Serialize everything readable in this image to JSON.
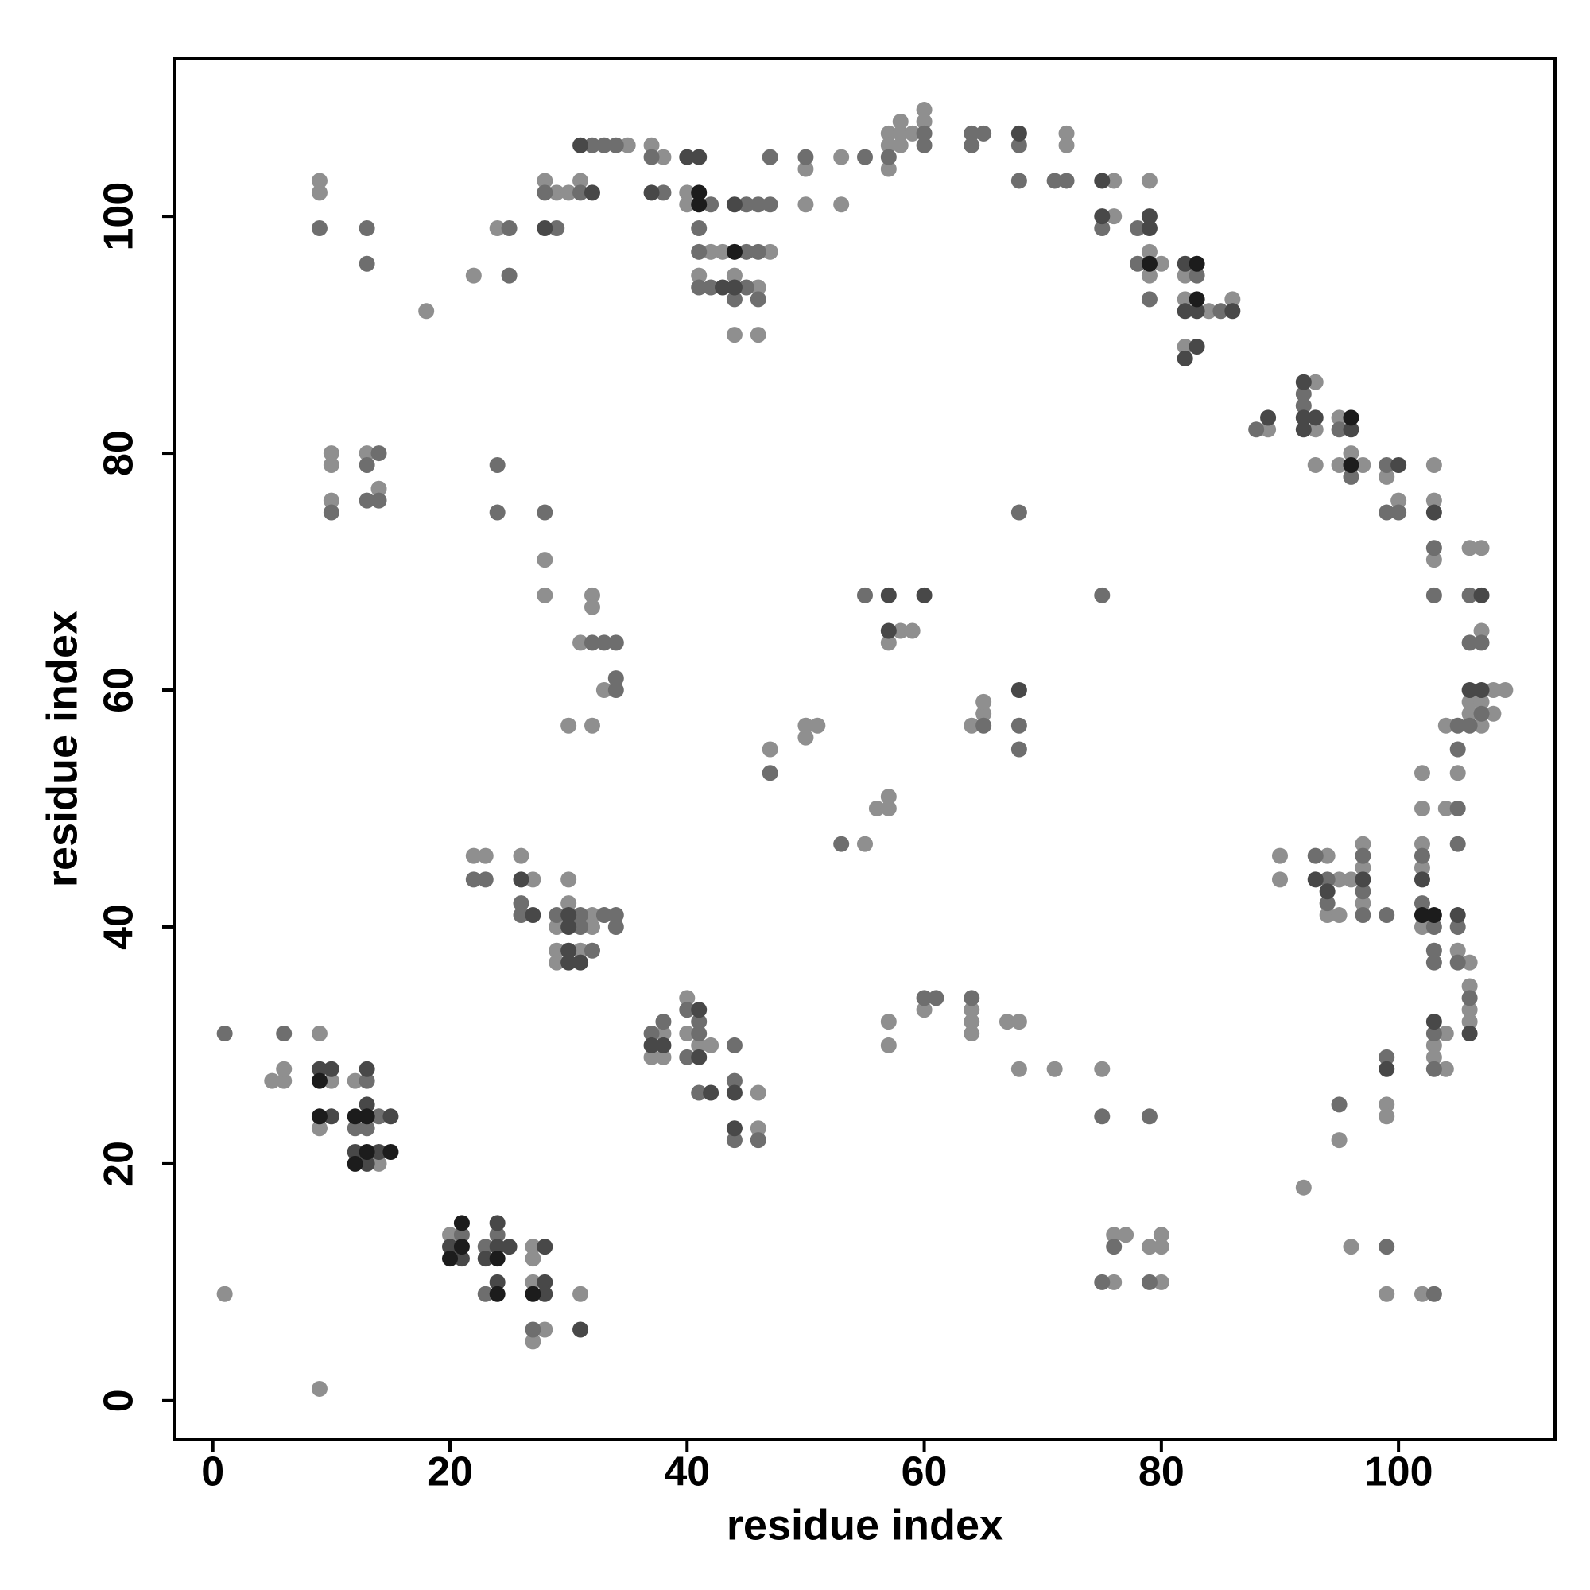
{
  "chart_data": {
    "type": "scatter",
    "xlabel": "residue index",
    "ylabel": "residue index",
    "xlim": [
      -3.2,
      113.2
    ],
    "ylim": [
      -3.3,
      113.3
    ],
    "xticks": [
      0,
      20,
      40,
      60,
      80,
      100
    ],
    "yticks": [
      0,
      20,
      40,
      60,
      80,
      100
    ],
    "grid": false,
    "series": [
      {
        "color": "#8f8f8f",
        "x": [
          1,
          9,
          5,
          6,
          6,
          9,
          9,
          10,
          12,
          14,
          20,
          27,
          27,
          27,
          28,
          27,
          31,
          22,
          23,
          26,
          27,
          32,
          29,
          30,
          30,
          32,
          29,
          31,
          29,
          38,
          37,
          38,
          40,
          40,
          41,
          42,
          46,
          46,
          10,
          13,
          10,
          14,
          10,
          28,
          28,
          32,
          32,
          31,
          33,
          30,
          32,
          9,
          9,
          18,
          22,
          24,
          28,
          29,
          30,
          31,
          35,
          37,
          38,
          40,
          40,
          42,
          43,
          47,
          41,
          46,
          44,
          44,
          46,
          50,
          53,
          50,
          53,
          57,
          57,
          58,
          58,
          59,
          57,
          58,
          60,
          60,
          72,
          72,
          76,
          76,
          79,
          79,
          80,
          79,
          82,
          82,
          84,
          86,
          82,
          89,
          93,
          93,
          95,
          93,
          95,
          96,
          97,
          99,
          100,
          103,
          103,
          103,
          106,
          107,
          107,
          108,
          109,
          106,
          107,
          106,
          108,
          104,
          107,
          105,
          104,
          90,
          90,
          94,
          95,
          94,
          95,
          97,
          97,
          96,
          97,
          102,
          102,
          102,
          102,
          102,
          105,
          106,
          106,
          106,
          106,
          104,
          103,
          103,
          104,
          99,
          99,
          95,
          92,
          96,
          99,
          102,
          75,
          71,
          68,
          76,
          77,
          76,
          79,
          80,
          80,
          80,
          57,
          57,
          60,
          64,
          64,
          64,
          67,
          68,
          58,
          59,
          57,
          56,
          57,
          57,
          55,
          50,
          51,
          50,
          47,
          64,
          65,
          65
        ],
        "values": [
          9,
          1,
          27,
          27,
          28,
          31,
          23,
          27,
          27,
          20,
          14,
          13,
          12,
          10,
          6,
          5,
          9,
          46,
          46,
          46,
          44,
          41,
          40,
          42,
          44,
          40,
          38,
          38,
          37,
          31,
          29,
          29,
          34,
          31,
          30,
          30,
          26,
          23,
          80,
          80,
          79,
          77,
          76,
          71,
          68,
          68,
          67,
          64,
          60,
          57,
          57,
          103,
          102,
          92,
          95,
          99,
          103,
          102,
          102,
          103,
          106,
          106,
          105,
          102,
          101,
          97,
          97,
          97,
          95,
          94,
          95,
          90,
          90,
          104,
          105,
          101,
          101,
          107,
          106,
          107,
          108,
          107,
          104,
          106,
          109,
          108,
          107,
          106,
          103,
          100,
          103,
          97,
          96,
          95,
          95,
          93,
          92,
          93,
          89,
          82,
          86,
          82,
          83,
          79,
          79,
          80,
          79,
          78,
          76,
          79,
          76,
          71,
          72,
          72,
          65,
          60,
          60,
          59,
          59,
          58,
          58,
          57,
          57,
          53,
          50,
          46,
          44,
          46,
          44,
          41,
          41,
          47,
          45,
          44,
          42,
          53,
          50,
          47,
          45,
          40,
          38,
          37,
          35,
          33,
          32,
          31,
          30,
          29,
          28,
          25,
          24,
          22,
          18,
          13,
          9,
          9,
          28,
          28,
          28,
          14,
          14,
          10,
          13,
          14,
          13,
          10,
          32,
          30,
          33,
          33,
          32,
          31,
          32,
          32,
          65,
          65,
          64,
          50,
          50,
          51,
          47,
          57,
          57,
          56,
          55,
          57,
          58,
          59
        ]
      },
      {
        "color": "#6e6e6e",
        "x": [
          1,
          6,
          13,
          14,
          12,
          13,
          21,
          23,
          24,
          23,
          27,
          22,
          23,
          26,
          26,
          29,
          31,
          33,
          34,
          31,
          34,
          32,
          37,
          38,
          40,
          41,
          41,
          40,
          41,
          44,
          44,
          44,
          46,
          14,
          13,
          13,
          14,
          10,
          24,
          24,
          28,
          32,
          33,
          34,
          34,
          34,
          9,
          13,
          13,
          25,
          25,
          28,
          31,
          29,
          32,
          33,
          34,
          37,
          38,
          42,
          41,
          41,
          45,
          46,
          41,
          42,
          45,
          44,
          46,
          45,
          46,
          47,
          47,
          50,
          55,
          57,
          60,
          60,
          64,
          65,
          64,
          68,
          68,
          71,
          72,
          75,
          78,
          78,
          79,
          83,
          85,
          88,
          92,
          92,
          95,
          96,
          99,
          99,
          100,
          103,
          103,
          106,
          106,
          107,
          107,
          105,
          106,
          105,
          105,
          105,
          93,
          94,
          94,
          97,
          97,
          97,
          99,
          102,
          102,
          103,
          103,
          103,
          105,
          105,
          106,
          103,
          103,
          99,
          95,
          99,
          103,
          75,
          79,
          76,
          75,
          79,
          60,
          61,
          64,
          55,
          53,
          47,
          65,
          68,
          68,
          68,
          75
        ],
        "values": [
          31,
          31,
          27,
          24,
          23,
          23,
          14,
          13,
          14,
          9,
          6,
          44,
          44,
          42,
          41,
          41,
          41,
          41,
          41,
          40,
          40,
          38,
          31,
          32,
          33,
          31,
          32,
          29,
          26,
          30,
          27,
          22,
          22,
          80,
          79,
          76,
          76,
          75,
          79,
          75,
          75,
          64,
          64,
          64,
          61,
          60,
          99,
          99,
          96,
          95,
          99,
          102,
          102,
          99,
          106,
          106,
          106,
          105,
          102,
          101,
          99,
          97,
          97,
          97,
          94,
          94,
          94,
          93,
          93,
          101,
          101,
          101,
          105,
          105,
          105,
          105,
          107,
          106,
          107,
          107,
          106,
          106,
          103,
          103,
          103,
          99,
          99,
          96,
          93,
          95,
          92,
          82,
          85,
          84,
          82,
          78,
          79,
          75,
          75,
          72,
          68,
          68,
          64,
          64,
          58,
          57,
          57,
          55,
          50,
          47,
          46,
          44,
          42,
          46,
          43,
          41,
          41,
          46,
          42,
          40,
          38,
          37,
          40,
          37,
          34,
          31,
          28,
          29,
          25,
          13,
          9,
          24,
          24,
          13,
          10,
          10,
          34,
          34,
          34,
          68,
          47,
          53,
          57,
          57,
          55,
          75,
          68
        ]
      },
      {
        "color": "#484848",
        "x": [
          9,
          10,
          10,
          13,
          13,
          15,
          12,
          14,
          13,
          20,
          21,
          24,
          24,
          23,
          25,
          24,
          28,
          28,
          28,
          31,
          26,
          27,
          30,
          30,
          30,
          30,
          31,
          37,
          38,
          41,
          41,
          42,
          44,
          44,
          32,
          28,
          31,
          37,
          40,
          41,
          43,
          44,
          44,
          68,
          75,
          75,
          79,
          79,
          82,
          82,
          83,
          86,
          83,
          82,
          89,
          92,
          92,
          93,
          92,
          96,
          100,
          103,
          107,
          106,
          107,
          93,
          94,
          97,
          102,
          105,
          106,
          103,
          99,
          57,
          60,
          57,
          68
        ],
        "values": [
          28,
          28,
          24,
          28,
          25,
          24,
          21,
          21,
          20,
          13,
          12,
          13,
          15,
          12,
          13,
          10,
          13,
          10,
          9,
          6,
          44,
          41,
          41,
          40,
          38,
          37,
          37,
          30,
          30,
          33,
          29,
          26,
          26,
          23,
          102,
          99,
          106,
          102,
          105,
          105,
          94,
          94,
          101,
          107,
          103,
          100,
          100,
          99,
          96,
          92,
          92,
          92,
          89,
          88,
          83,
          86,
          83,
          83,
          82,
          82,
          79,
          75,
          68,
          60,
          60,
          44,
          43,
          44,
          44,
          41,
          31,
          32,
          28,
          68,
          68,
          65,
          60
        ]
      },
      {
        "color": "#1c1c1c",
        "x": [
          9,
          9,
          12,
          13,
          13,
          15,
          12,
          21,
          21,
          20,
          24,
          24,
          27,
          41,
          41,
          44,
          79,
          83,
          83,
          96,
          96,
          102,
          103
        ],
        "values": [
          27,
          24,
          24,
          24,
          21,
          21,
          20,
          15,
          13,
          12,
          12,
          9,
          9,
          102,
          101,
          97,
          96,
          96,
          93,
          83,
          79,
          41,
          41
        ]
      }
    ]
  }
}
